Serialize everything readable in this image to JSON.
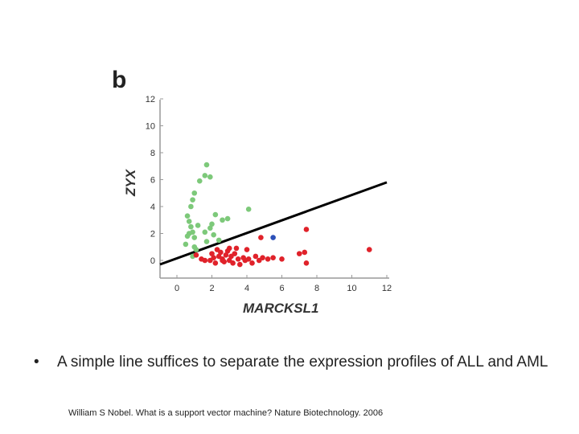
{
  "panel_label": "b",
  "bullet": {
    "marker": "•",
    "text": "A simple line suffices to separate the expression profiles of ALL and AML"
  },
  "citation": "William S Nobel. What is a support vector machine? Nature Biotechnology. 2006",
  "colors": {
    "green": "#7dc97a",
    "red": "#e0222a",
    "blue": "#2c50b8",
    "axis": "#999999",
    "line": "#000000"
  },
  "chart_data": {
    "type": "scatter",
    "title": "",
    "xlabel": "MARCKSL1",
    "ylabel": "ZYX",
    "xlim": [
      -0.5,
      12
    ],
    "ylim": [
      -1,
      12.5
    ],
    "xticks": [
      "0",
      "2",
      "4",
      "6",
      "8",
      "10",
      "12"
    ],
    "yticks": [
      "0",
      "2",
      "4",
      "6",
      "8",
      "10",
      "12"
    ],
    "separator_line": {
      "x": [
        0,
        12
      ],
      "y": [
        -0.3,
        5.8
      ]
    },
    "series": [
      {
        "name": "green",
        "color": "#7dc97a",
        "points": [
          [
            0.5,
            1.2
          ],
          [
            0.6,
            1.8
          ],
          [
            0.7,
            2.0
          ],
          [
            0.8,
            2.5
          ],
          [
            0.9,
            2.1
          ],
          [
            1.0,
            1.0
          ],
          [
            0.9,
            0.3
          ],
          [
            0.7,
            2.9
          ],
          [
            0.8,
            4.0
          ],
          [
            0.9,
            4.5
          ],
          [
            1.0,
            5.0
          ],
          [
            1.3,
            5.9
          ],
          [
            1.6,
            6.3
          ],
          [
            1.9,
            6.2
          ],
          [
            1.7,
            7.1
          ],
          [
            1.0,
            1.7
          ],
          [
            1.6,
            2.1
          ],
          [
            1.9,
            2.4
          ],
          [
            2.0,
            2.7
          ],
          [
            2.2,
            3.4
          ],
          [
            2.6,
            3.0
          ],
          [
            2.9,
            3.1
          ],
          [
            2.1,
            1.9
          ],
          [
            2.4,
            1.5
          ],
          [
            1.7,
            1.4
          ],
          [
            1.2,
            2.6
          ],
          [
            4.1,
            3.8
          ],
          [
            0.6,
            3.3
          ],
          [
            1.1,
            0.8
          ]
        ]
      },
      {
        "name": "red",
        "color": "#e0222a",
        "points": [
          [
            1.1,
            0.4
          ],
          [
            1.4,
            0.1
          ],
          [
            1.6,
            0.0
          ],
          [
            1.9,
            0.0
          ],
          [
            2.0,
            0.5
          ],
          [
            2.1,
            0.2
          ],
          [
            2.2,
            -0.2
          ],
          [
            2.4,
            0.3
          ],
          [
            2.5,
            0.6
          ],
          [
            2.6,
            0.1
          ],
          [
            2.7,
            -0.1
          ],
          [
            2.8,
            0.4
          ],
          [
            2.9,
            0.7
          ],
          [
            3.0,
            0.0
          ],
          [
            3.1,
            0.3
          ],
          [
            3.2,
            -0.2
          ],
          [
            3.3,
            0.5
          ],
          [
            3.5,
            0.1
          ],
          [
            3.6,
            -0.3
          ],
          [
            3.8,
            0.2
          ],
          [
            3.9,
            0.0
          ],
          [
            4.1,
            0.1
          ],
          [
            4.3,
            -0.2
          ],
          [
            4.5,
            0.3
          ],
          [
            4.7,
            0.0
          ],
          [
            4.9,
            0.2
          ],
          [
            5.2,
            0.1
          ],
          [
            5.5,
            0.2
          ],
          [
            6.0,
            0.1
          ],
          [
            3.4,
            0.9
          ],
          [
            4.0,
            0.8
          ],
          [
            2.3,
            0.8
          ],
          [
            7.0,
            0.5
          ],
          [
            7.3,
            0.6
          ],
          [
            7.4,
            -0.2
          ],
          [
            7.4,
            2.3
          ],
          [
            11.0,
            0.8
          ],
          [
            4.8,
            1.7
          ],
          [
            2.6,
            0.0
          ],
          [
            3.0,
            0.9
          ]
        ]
      },
      {
        "name": "blue",
        "color": "#2c50b8",
        "points": [
          [
            5.5,
            1.7
          ]
        ]
      }
    ]
  }
}
